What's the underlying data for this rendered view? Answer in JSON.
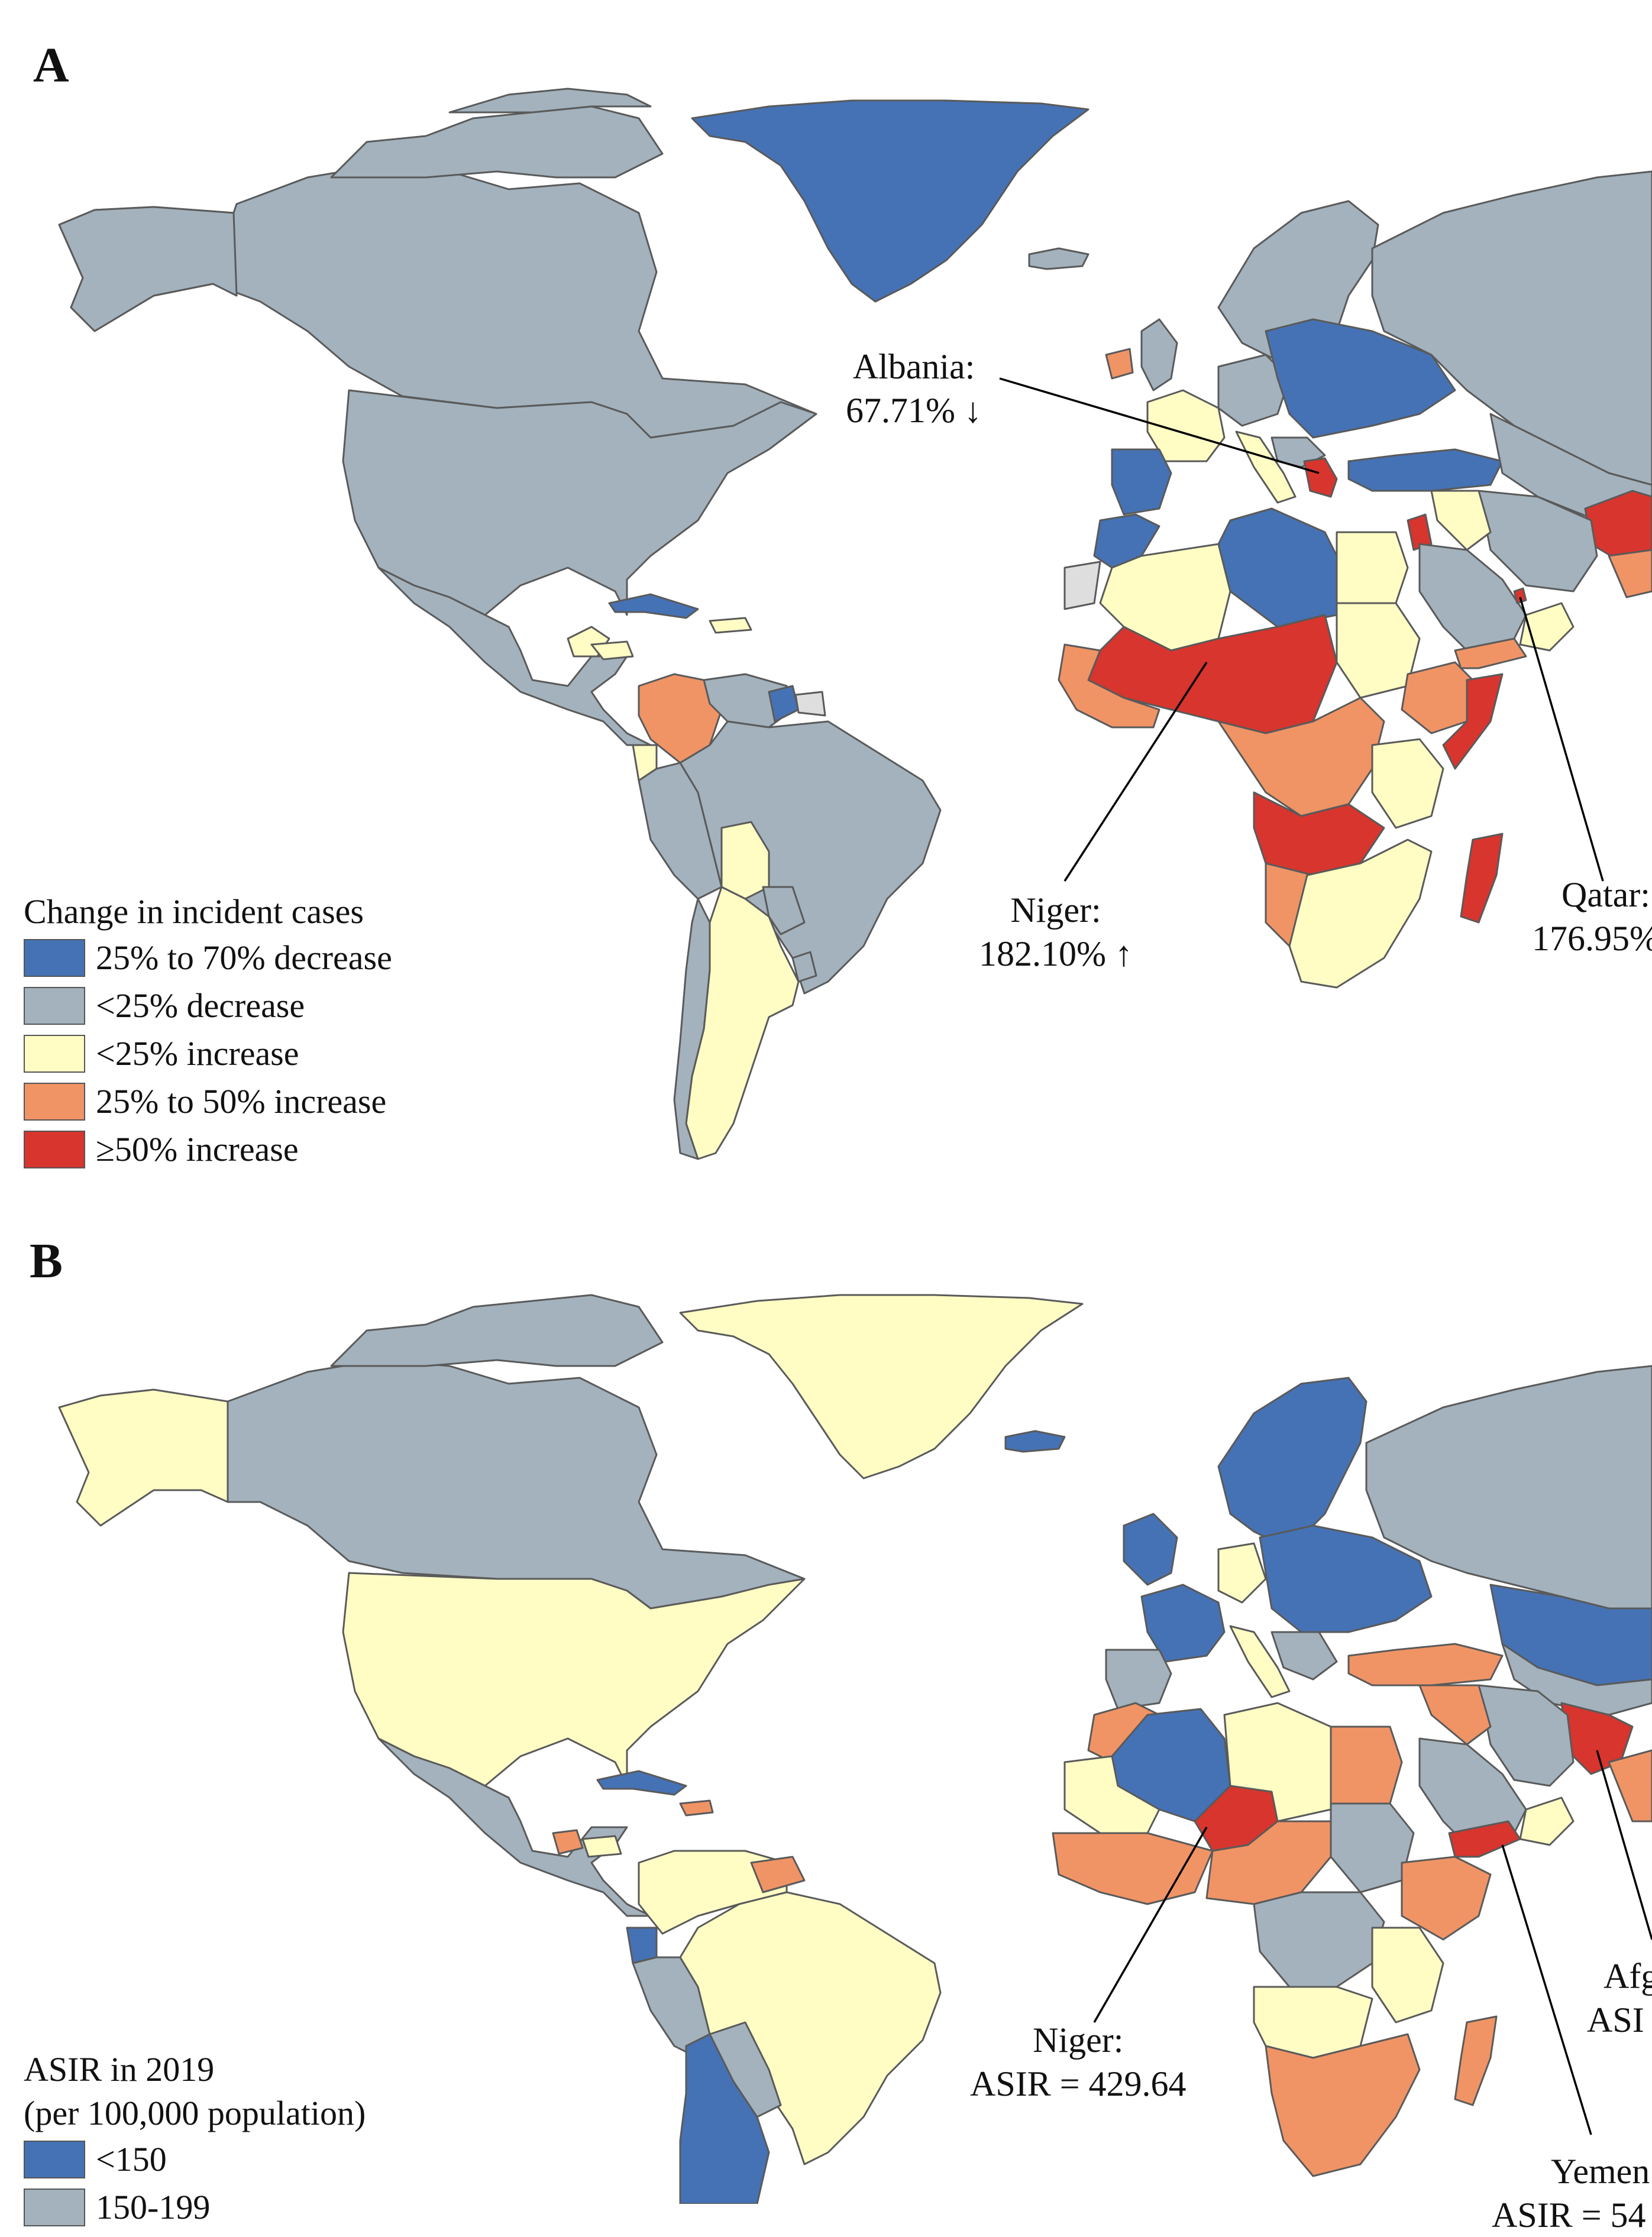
{
  "colors": {
    "blue": "#4572B5",
    "grey": "#A3B2BD",
    "light_yellow": "#FFFDC4",
    "orange": "#F09466",
    "red": "#D7352E",
    "no_data": "#DEDEDE",
    "border": "#5A5A5A"
  },
  "panel_a": {
    "letter": "A",
    "legend": {
      "title": "Change in incident cases",
      "items": [
        {
          "label": "25% to 70% decrease",
          "color": "#4572B5"
        },
        {
          "label": "<25% decrease",
          "color": "#A3B2BD"
        },
        {
          "label": "<25% increase",
          "color": "#FFFDC4"
        },
        {
          "label": "25% to 50% increase",
          "color": "#F09466"
        },
        {
          "label": "≥50% increase",
          "color": "#D7352E"
        }
      ]
    },
    "annotations": {
      "albania": {
        "name": "Albania:",
        "value": "67.71% ↓"
      },
      "niger": {
        "name": "Niger:",
        "value": "182.10% ↑"
      },
      "qatar": {
        "name": "Qatar:",
        "value": "176.95%"
      }
    }
  },
  "panel_b": {
    "letter": "B",
    "legend": {
      "title_line1": "ASIR in 2019",
      "title_line2": "(per 100,000 population)",
      "items": [
        {
          "label": "<150",
          "color": "#4572B5"
        },
        {
          "label": "150-199",
          "color": "#A3B2BD"
        }
      ]
    },
    "annotations": {
      "niger": {
        "name": "Niger:",
        "value": "ASIR = 429.64"
      },
      "afghanistan": {
        "name": "Afg",
        "value": "ASI"
      },
      "yemen": {
        "name": "Yemen",
        "value": "ASIR = 54"
      }
    }
  }
}
